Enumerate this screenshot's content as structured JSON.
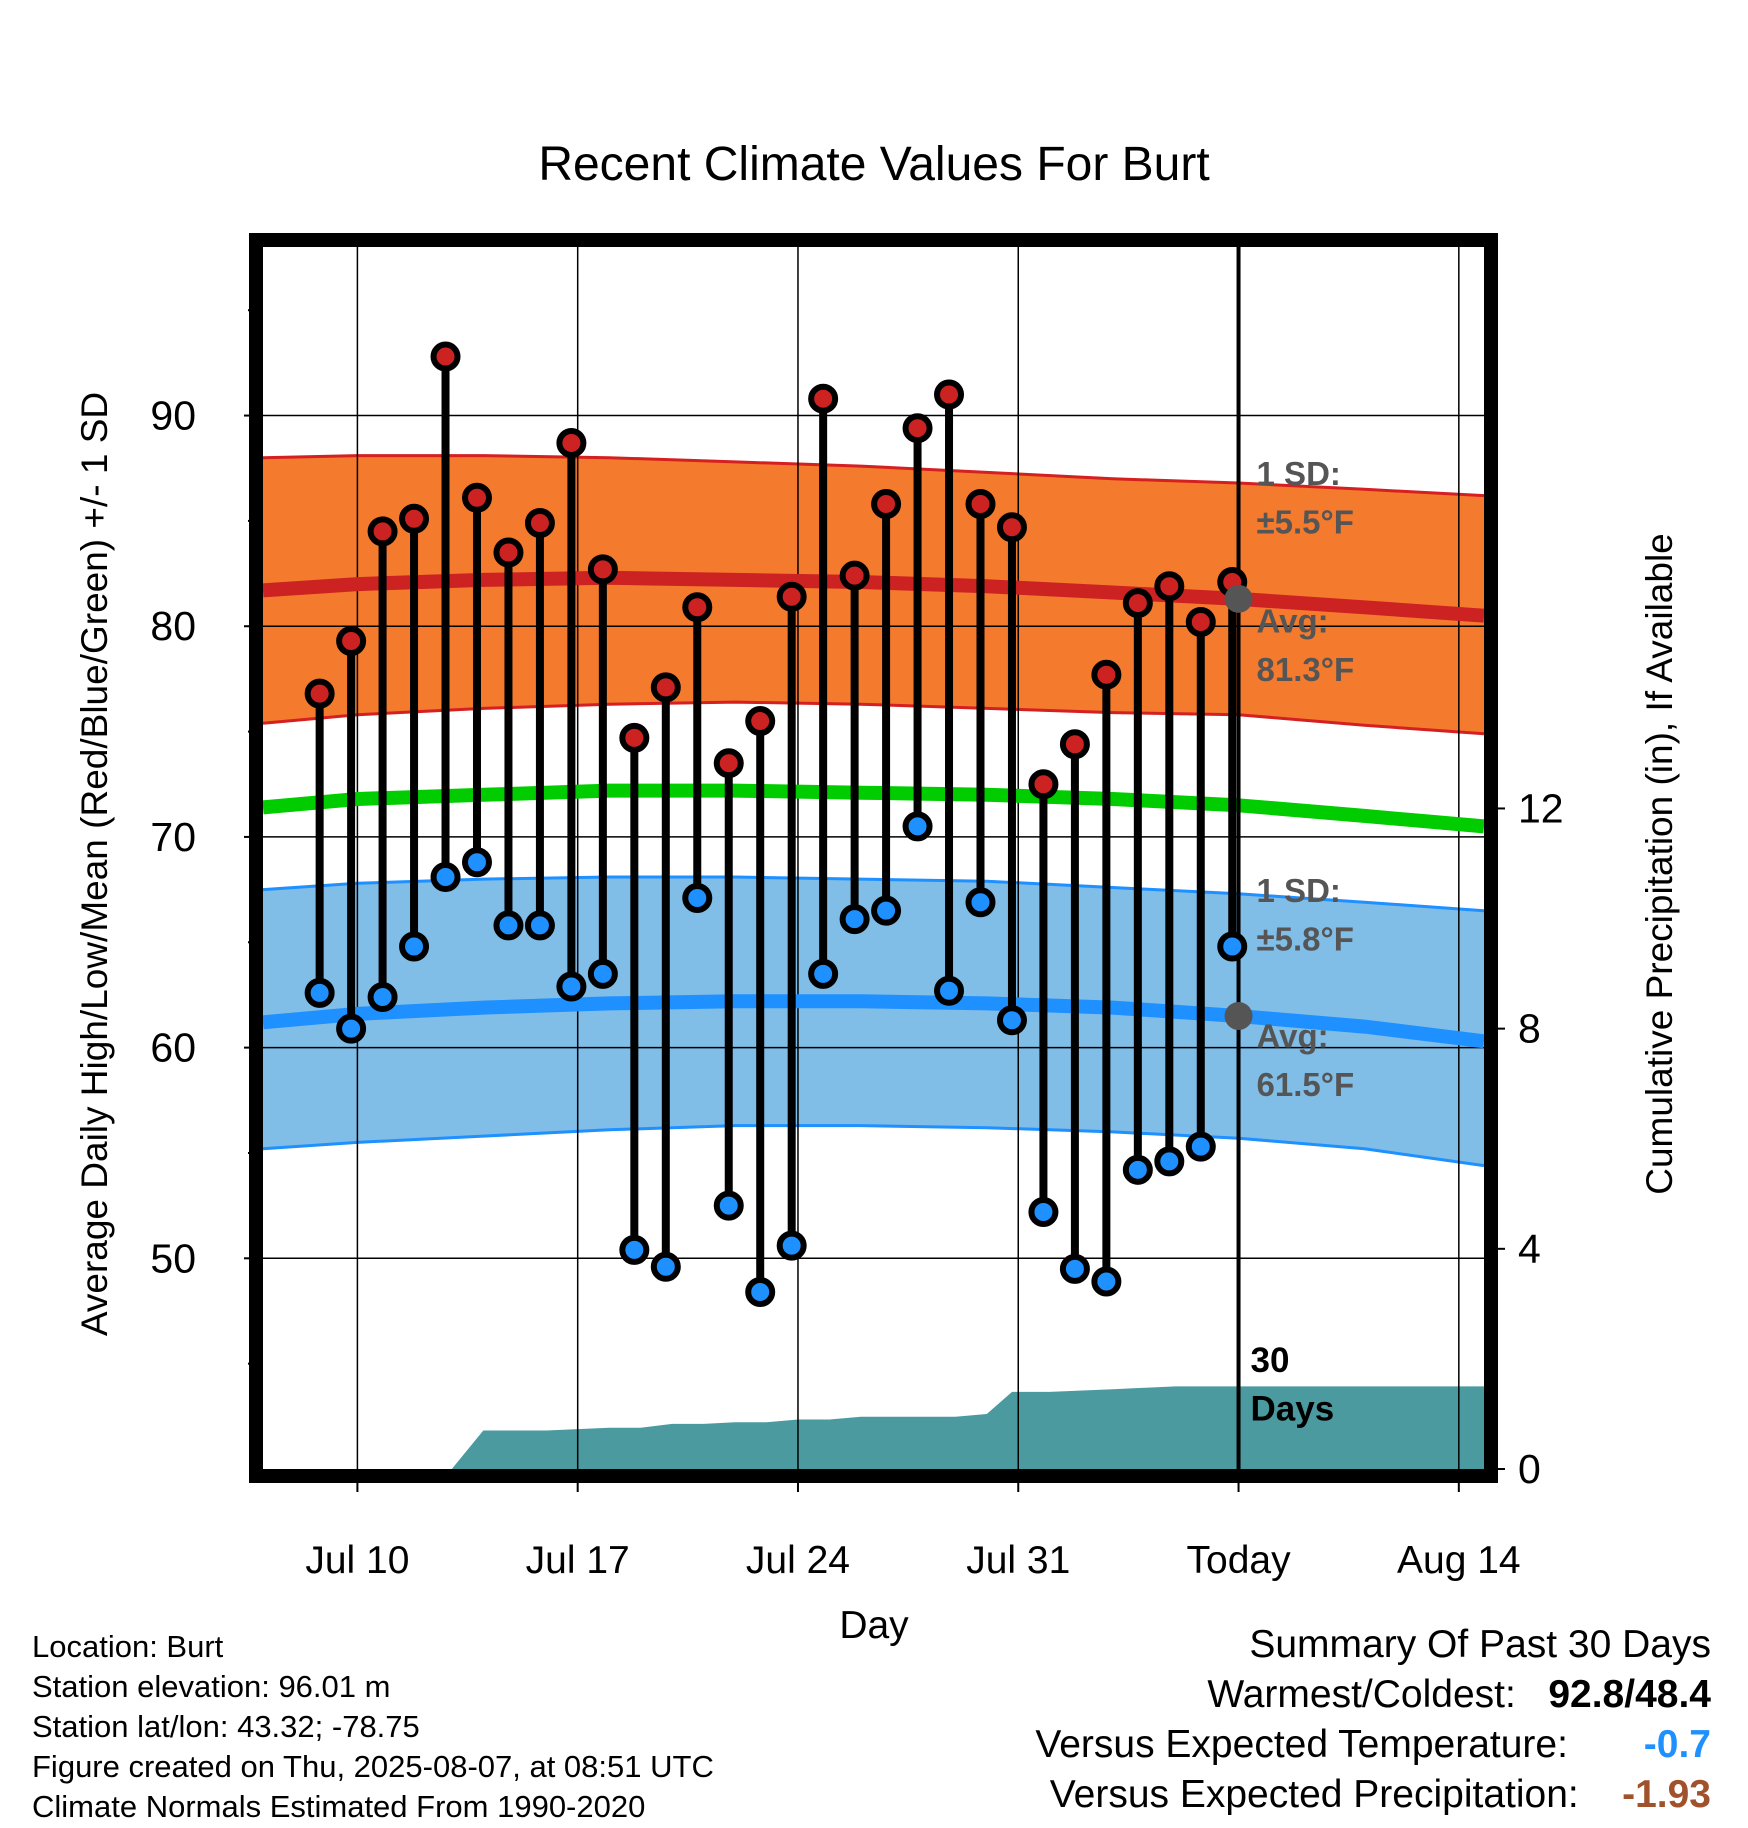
{
  "meta": {
    "location": "Location: Burt",
    "elevation": "Station elevation: 96.01 m",
    "latlon": "Station lat/lon: 43.32; -78.75",
    "created": "Figure created on Thu, 2025-08-07, at 08:51 UTC",
    "normals": "Climate Normals Estimated From 1990-2020"
  },
  "summary": {
    "title": "Summary Of Past 30 Days",
    "warm_cold_label": "Warmest/Coldest:",
    "warm_cold_value": "92.8/48.4",
    "temp_label": "Versus Expected Temperature:",
    "temp_value": "-0.7",
    "prcp_label": "Versus Expected Precipitation:",
    "prcp_value": "-1.93"
  },
  "chart_data": {
    "type": "line",
    "title": "Recent Climate Values For Burt",
    "xlabel": "Day",
    "ylabel": "Average Daily High/Low/Mean (Red/Blue/Green) +/- 1 SD",
    "y2label": "Cumulative Precipitation (in), If Available",
    "xlim": [
      7,
      45.8
    ],
    "ylim": [
      40,
      98
    ],
    "y2lim": [
      0,
      22.2
    ],
    "x_ticks": [
      {
        "x": 10,
        "label": "Jul 10"
      },
      {
        "x": 17,
        "label": "Jul 17"
      },
      {
        "x": 24,
        "label": "Jul 24"
      },
      {
        "x": 31,
        "label": "Jul 31"
      },
      {
        "x": 38,
        "label": "Today"
      },
      {
        "x": 45,
        "label": "Aug 14"
      }
    ],
    "y_ticks": [
      50,
      60,
      70,
      80,
      90
    ],
    "y_minor_ticks": [
      45,
      55,
      65,
      75,
      85,
      95
    ],
    "y2_ticks": [
      0,
      4,
      8,
      12
    ],
    "grid": true,
    "today_x": 38,
    "colors": {
      "high": "#cc2222",
      "high_band": "#f47a2e",
      "high_band_edge": "#d42020",
      "low": "#1e90ff",
      "low_band": "#80bde7",
      "low_band_edge": "#1e90ff",
      "mean": "#00cc00",
      "precip": "#4a9aa0",
      "annotation": "#555555"
    },
    "normal_high": {
      "x": [
        7,
        10,
        14,
        18,
        22,
        26,
        30,
        34,
        38,
        42,
        45.8
      ],
      "y": [
        81.7,
        82.0,
        82.2,
        82.3,
        82.2,
        82.1,
        81.9,
        81.6,
        81.3,
        80.9,
        80.5
      ]
    },
    "high_sd_upper": {
      "x": [
        7,
        10,
        14,
        18,
        22,
        26,
        30,
        34,
        38,
        42,
        45.8
      ],
      "y": [
        88.0,
        88.1,
        88.1,
        88.0,
        87.8,
        87.6,
        87.3,
        87.0,
        86.8,
        86.5,
        86.2
      ]
    },
    "high_sd_lower": {
      "x": [
        7,
        10,
        14,
        18,
        22,
        26,
        30,
        34,
        38,
        42,
        45.8
      ],
      "y": [
        75.4,
        75.8,
        76.1,
        76.3,
        76.4,
        76.3,
        76.1,
        75.9,
        75.8,
        75.3,
        74.9
      ]
    },
    "normal_mean": {
      "x": [
        7,
        10,
        14,
        18,
        22,
        26,
        30,
        34,
        38,
        42,
        45.8
      ],
      "y": [
        71.4,
        71.8,
        72.0,
        72.2,
        72.2,
        72.1,
        72.0,
        71.8,
        71.5,
        71.0,
        70.5
      ]
    },
    "normal_low": {
      "x": [
        7,
        10,
        14,
        18,
        22,
        26,
        30,
        34,
        38,
        42,
        45.8
      ],
      "y": [
        61.2,
        61.6,
        61.9,
        62.1,
        62.2,
        62.2,
        62.1,
        61.9,
        61.5,
        61.0,
        60.3
      ]
    },
    "low_sd_upper": {
      "x": [
        7,
        10,
        14,
        18,
        22,
        26,
        30,
        34,
        38,
        42,
        45.8
      ],
      "y": [
        67.5,
        67.8,
        68.0,
        68.1,
        68.1,
        68.0,
        67.9,
        67.6,
        67.3,
        66.9,
        66.5
      ]
    },
    "low_sd_lower": {
      "x": [
        7,
        10,
        14,
        18,
        22,
        26,
        30,
        34,
        38,
        42,
        45.8
      ],
      "y": [
        55.2,
        55.5,
        55.8,
        56.1,
        56.3,
        56.3,
        56.2,
        56.0,
        55.7,
        55.2,
        54.4
      ]
    },
    "daily": {
      "x": [
        8.8,
        9.8,
        10.8,
        11.8,
        12.8,
        13.8,
        14.8,
        15.8,
        16.8,
        17.8,
        18.8,
        19.8,
        20.8,
        21.8,
        22.8,
        23.8,
        24.8,
        25.8,
        26.8,
        27.8,
        28.8,
        29.8,
        30.8,
        31.8,
        32.8,
        33.8,
        34.8,
        35.8,
        36.8,
        37.8
      ],
      "high": [
        76.8,
        79.3,
        84.5,
        85.1,
        92.8,
        86.1,
        83.5,
        84.9,
        88.7,
        82.7,
        74.7,
        77.1,
        80.9,
        73.5,
        75.5,
        81.4,
        90.8,
        82.4,
        85.8,
        89.4,
        91.0,
        85.8,
        84.7,
        72.5,
        74.4,
        77.7,
        81.1,
        81.9,
        80.2,
        82.1
      ],
      "low": [
        62.6,
        60.9,
        62.4,
        64.8,
        68.1,
        68.8,
        65.8,
        65.8,
        62.9,
        63.5,
        50.4,
        49.6,
        67.1,
        52.5,
        48.4,
        50.6,
        63.5,
        66.1,
        66.5,
        70.5,
        62.7,
        66.9,
        61.3,
        52.2,
        49.5,
        48.9,
        54.2,
        54.6,
        55.3,
        64.8
      ]
    },
    "precip": {
      "x": [
        7,
        9,
        11,
        12,
        13,
        14,
        16,
        18,
        19,
        20,
        21,
        22,
        23,
        24,
        25,
        26,
        28,
        29,
        30,
        30.8,
        31,
        32,
        34,
        36,
        38,
        40,
        42,
        44,
        45.8
      ],
      "y": [
        0,
        0,
        0,
        0,
        0.0,
        0.7,
        0.7,
        0.75,
        0.75,
        0.82,
        0.82,
        0.85,
        0.85,
        0.9,
        0.9,
        0.95,
        0.95,
        0.95,
        1.0,
        1.4,
        1.4,
        1.4,
        1.45,
        1.5,
        1.5,
        1.5,
        1.5,
        1.5,
        1.5
      ]
    },
    "annotations": {
      "high_sd": "1 SD:",
      "high_sd_value": "±5.5°F",
      "high_avg": "Avg:",
      "high_avg_value": "81.3°F",
      "low_sd": "1 SD:",
      "low_sd_value": "±5.8°F",
      "low_avg": "Avg:",
      "low_avg_value": "61.5°F",
      "days_line1": "30",
      "days_line2": "Days"
    }
  }
}
